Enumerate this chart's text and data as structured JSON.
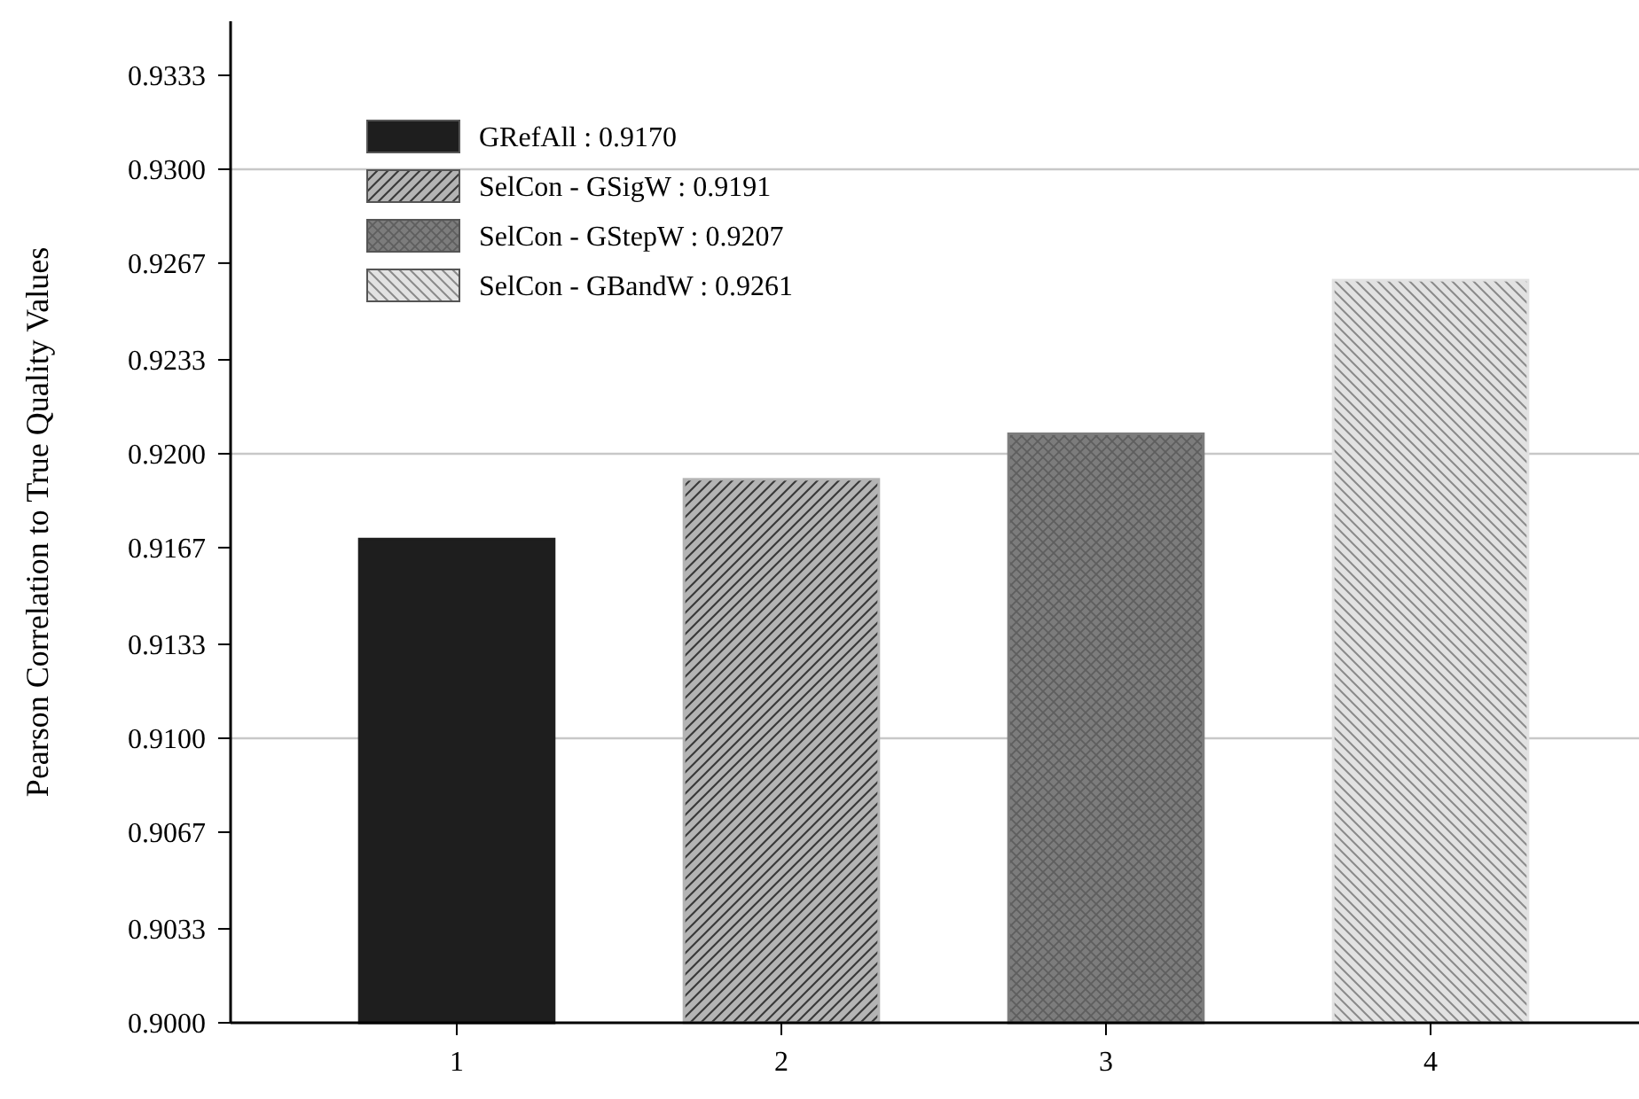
{
  "chart_data": {
    "type": "bar",
    "ylabel": "Pearson Correlation to True Quality Values",
    "categories": [
      "1",
      "2",
      "3",
      "4"
    ],
    "series": [
      {
        "name": "GRefAll : 0.9170",
        "color": "#1e1e1e",
        "values": [
          0.917,
          null,
          null,
          null
        ]
      },
      {
        "name": "SelCon - GSigW : 0.9191",
        "color": "#b4b4b4",
        "values": [
          null,
          0.9191,
          null,
          null
        ]
      },
      {
        "name": "SelCon - GStepW : 0.9207",
        "color": "#7c7c7c",
        "values": [
          null,
          null,
          0.9207,
          null
        ]
      },
      {
        "name": "SelCon - GBandW : 0.9261",
        "color": "#e2e2e2",
        "values": [
          null,
          null,
          null,
          0.9261
        ]
      }
    ],
    "ylim": [
      0.9,
      0.9352
    ],
    "yticks": [
      {
        "value": 0.9,
        "label": "0.9000"
      },
      {
        "value": 0.9033,
        "label": "0.9033"
      },
      {
        "value": 0.9067,
        "label": "0.9067"
      },
      {
        "value": 0.91,
        "label": "0.9100"
      },
      {
        "value": 0.9133,
        "label": "0.9133"
      },
      {
        "value": 0.9167,
        "label": "0.9167"
      },
      {
        "value": 0.92,
        "label": "0.9200"
      },
      {
        "value": 0.9233,
        "label": "0.9233"
      },
      {
        "value": 0.9267,
        "label": "0.9267"
      },
      {
        "value": 0.93,
        "label": "0.9300"
      },
      {
        "value": 0.9333,
        "label": "0.9333"
      }
    ],
    "ref_lines": [
      {
        "axis": "y",
        "value": 0.91,
        "color": "#c8c8c8"
      },
      {
        "axis": "y",
        "value": 0.92,
        "color": "#c8c8c8"
      },
      {
        "axis": "y",
        "value": 0.93,
        "color": "#c8c8c8"
      }
    ],
    "legend": "top left"
  }
}
